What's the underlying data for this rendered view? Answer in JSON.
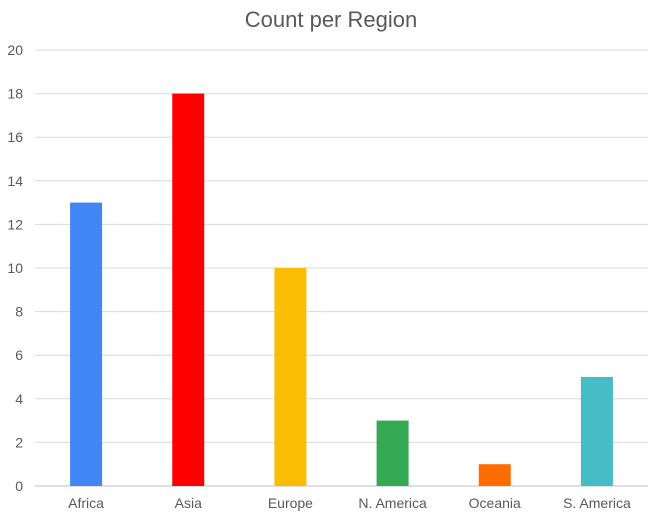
{
  "chart_data": {
    "type": "bar",
    "title": "Count per Region",
    "xlabel": "",
    "ylabel": "",
    "categories": [
      "Africa",
      "Asia",
      "Europe",
      "N. America",
      "Oceania",
      "S. America"
    ],
    "values": [
      13,
      18,
      10,
      3,
      1,
      5
    ],
    "colors": [
      "#4285f4",
      "#ff0000",
      "#fbbc04",
      "#34a853",
      "#ff6d01",
      "#46bdc6"
    ],
    "ylim": [
      0,
      20
    ],
    "yticks": [
      0,
      2,
      4,
      6,
      8,
      10,
      12,
      14,
      16,
      18,
      20
    ],
    "grid": true,
    "legend": "none"
  }
}
